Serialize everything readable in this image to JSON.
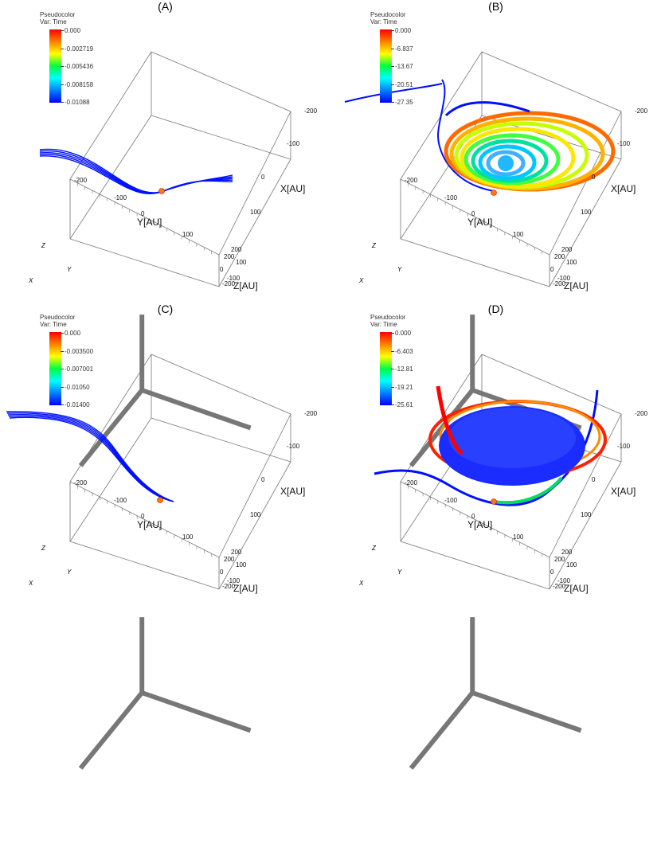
{
  "panels": [
    {
      "label": "(A)",
      "legend": {
        "title": "Pseudocolor",
        "var": "Var: Time",
        "ticks": [
          "0.000",
          "-0.002719",
          "-0.005436",
          "-0.008158",
          "-0.01088"
        ]
      },
      "mode": "track"
    },
    {
      "label": "(B)",
      "legend": {
        "title": "Pseudocolor",
        "var": "Var: Time",
        "ticks": [
          "0.000",
          "-6.837",
          "-13.67",
          "-20.51",
          "-27.35"
        ]
      },
      "mode": "rings"
    },
    {
      "label": "(C)",
      "legend": {
        "title": "Pseudocolor",
        "var": "Var: Time",
        "ticks": [
          "0.000",
          "-0.003500",
          "-0.007001",
          "-0.01050",
          "-0.01400"
        ]
      },
      "mode": "track2"
    },
    {
      "label": "(D)",
      "legend": {
        "title": "Pseudocolor",
        "var": "Var: Time",
        "ticks": [
          "0.000",
          "-6.403",
          "-12.81",
          "-19.21",
          "-25.61"
        ]
      },
      "mode": "disk"
    }
  ],
  "axes": {
    "x_label": "X[AU]",
    "y_label": "Y[AU]",
    "z_label": "Z[AU]",
    "x_ticks": [
      "-200",
      "-100",
      "0",
      "100",
      "200"
    ],
    "y_ticks": [
      "-200",
      "-100",
      "0",
      "100"
    ],
    "z_ticks": [
      "200",
      "100",
      "0",
      "-100",
      "-200"
    ]
  },
  "triad": {
    "z": "Z",
    "y": "Y",
    "x": "X"
  },
  "colors": {
    "blue": "#0010ff",
    "orange_dot": "#ff7a00",
    "red": "#ff0000"
  }
}
